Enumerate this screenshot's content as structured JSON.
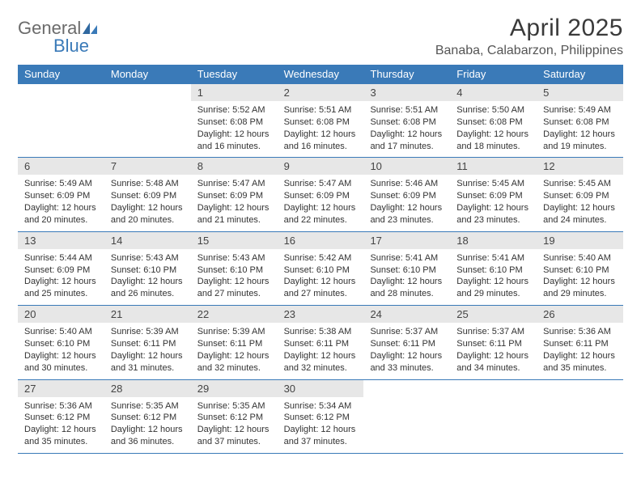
{
  "brand": {
    "name_part1": "General",
    "name_part2": "Blue"
  },
  "title": "April 2025",
  "location": "Banaba, Calabarzon, Philippines",
  "colors": {
    "header_bg": "#3a7ab8",
    "daynum_bg": "#e7e7e7",
    "text_dark": "#333333",
    "text_gray": "#6b6b6b",
    "rule": "#3a7ab8"
  },
  "days_of_week": [
    "Sunday",
    "Monday",
    "Tuesday",
    "Wednesday",
    "Thursday",
    "Friday",
    "Saturday"
  ],
  "weeks": [
    [
      {
        "n": "",
        "sr": "",
        "ss": "",
        "dl": ""
      },
      {
        "n": "",
        "sr": "",
        "ss": "",
        "dl": ""
      },
      {
        "n": "1",
        "sr": "Sunrise: 5:52 AM",
        "ss": "Sunset: 6:08 PM",
        "dl": "Daylight: 12 hours and 16 minutes."
      },
      {
        "n": "2",
        "sr": "Sunrise: 5:51 AM",
        "ss": "Sunset: 6:08 PM",
        "dl": "Daylight: 12 hours and 16 minutes."
      },
      {
        "n": "3",
        "sr": "Sunrise: 5:51 AM",
        "ss": "Sunset: 6:08 PM",
        "dl": "Daylight: 12 hours and 17 minutes."
      },
      {
        "n": "4",
        "sr": "Sunrise: 5:50 AM",
        "ss": "Sunset: 6:08 PM",
        "dl": "Daylight: 12 hours and 18 minutes."
      },
      {
        "n": "5",
        "sr": "Sunrise: 5:49 AM",
        "ss": "Sunset: 6:08 PM",
        "dl": "Daylight: 12 hours and 19 minutes."
      }
    ],
    [
      {
        "n": "6",
        "sr": "Sunrise: 5:49 AM",
        "ss": "Sunset: 6:09 PM",
        "dl": "Daylight: 12 hours and 20 minutes."
      },
      {
        "n": "7",
        "sr": "Sunrise: 5:48 AM",
        "ss": "Sunset: 6:09 PM",
        "dl": "Daylight: 12 hours and 20 minutes."
      },
      {
        "n": "8",
        "sr": "Sunrise: 5:47 AM",
        "ss": "Sunset: 6:09 PM",
        "dl": "Daylight: 12 hours and 21 minutes."
      },
      {
        "n": "9",
        "sr": "Sunrise: 5:47 AM",
        "ss": "Sunset: 6:09 PM",
        "dl": "Daylight: 12 hours and 22 minutes."
      },
      {
        "n": "10",
        "sr": "Sunrise: 5:46 AM",
        "ss": "Sunset: 6:09 PM",
        "dl": "Daylight: 12 hours and 23 minutes."
      },
      {
        "n": "11",
        "sr": "Sunrise: 5:45 AM",
        "ss": "Sunset: 6:09 PM",
        "dl": "Daylight: 12 hours and 23 minutes."
      },
      {
        "n": "12",
        "sr": "Sunrise: 5:45 AM",
        "ss": "Sunset: 6:09 PM",
        "dl": "Daylight: 12 hours and 24 minutes."
      }
    ],
    [
      {
        "n": "13",
        "sr": "Sunrise: 5:44 AM",
        "ss": "Sunset: 6:09 PM",
        "dl": "Daylight: 12 hours and 25 minutes."
      },
      {
        "n": "14",
        "sr": "Sunrise: 5:43 AM",
        "ss": "Sunset: 6:10 PM",
        "dl": "Daylight: 12 hours and 26 minutes."
      },
      {
        "n": "15",
        "sr": "Sunrise: 5:43 AM",
        "ss": "Sunset: 6:10 PM",
        "dl": "Daylight: 12 hours and 27 minutes."
      },
      {
        "n": "16",
        "sr": "Sunrise: 5:42 AM",
        "ss": "Sunset: 6:10 PM",
        "dl": "Daylight: 12 hours and 27 minutes."
      },
      {
        "n": "17",
        "sr": "Sunrise: 5:41 AM",
        "ss": "Sunset: 6:10 PM",
        "dl": "Daylight: 12 hours and 28 minutes."
      },
      {
        "n": "18",
        "sr": "Sunrise: 5:41 AM",
        "ss": "Sunset: 6:10 PM",
        "dl": "Daylight: 12 hours and 29 minutes."
      },
      {
        "n": "19",
        "sr": "Sunrise: 5:40 AM",
        "ss": "Sunset: 6:10 PM",
        "dl": "Daylight: 12 hours and 29 minutes."
      }
    ],
    [
      {
        "n": "20",
        "sr": "Sunrise: 5:40 AM",
        "ss": "Sunset: 6:10 PM",
        "dl": "Daylight: 12 hours and 30 minutes."
      },
      {
        "n": "21",
        "sr": "Sunrise: 5:39 AM",
        "ss": "Sunset: 6:11 PM",
        "dl": "Daylight: 12 hours and 31 minutes."
      },
      {
        "n": "22",
        "sr": "Sunrise: 5:39 AM",
        "ss": "Sunset: 6:11 PM",
        "dl": "Daylight: 12 hours and 32 minutes."
      },
      {
        "n": "23",
        "sr": "Sunrise: 5:38 AM",
        "ss": "Sunset: 6:11 PM",
        "dl": "Daylight: 12 hours and 32 minutes."
      },
      {
        "n": "24",
        "sr": "Sunrise: 5:37 AM",
        "ss": "Sunset: 6:11 PM",
        "dl": "Daylight: 12 hours and 33 minutes."
      },
      {
        "n": "25",
        "sr": "Sunrise: 5:37 AM",
        "ss": "Sunset: 6:11 PM",
        "dl": "Daylight: 12 hours and 34 minutes."
      },
      {
        "n": "26",
        "sr": "Sunrise: 5:36 AM",
        "ss": "Sunset: 6:11 PM",
        "dl": "Daylight: 12 hours and 35 minutes."
      }
    ],
    [
      {
        "n": "27",
        "sr": "Sunrise: 5:36 AM",
        "ss": "Sunset: 6:12 PM",
        "dl": "Daylight: 12 hours and 35 minutes."
      },
      {
        "n": "28",
        "sr": "Sunrise: 5:35 AM",
        "ss": "Sunset: 6:12 PM",
        "dl": "Daylight: 12 hours and 36 minutes."
      },
      {
        "n": "29",
        "sr": "Sunrise: 5:35 AM",
        "ss": "Sunset: 6:12 PM",
        "dl": "Daylight: 12 hours and 37 minutes."
      },
      {
        "n": "30",
        "sr": "Sunrise: 5:34 AM",
        "ss": "Sunset: 6:12 PM",
        "dl": "Daylight: 12 hours and 37 minutes."
      },
      {
        "n": "",
        "sr": "",
        "ss": "",
        "dl": ""
      },
      {
        "n": "",
        "sr": "",
        "ss": "",
        "dl": ""
      },
      {
        "n": "",
        "sr": "",
        "ss": "",
        "dl": ""
      }
    ]
  ]
}
